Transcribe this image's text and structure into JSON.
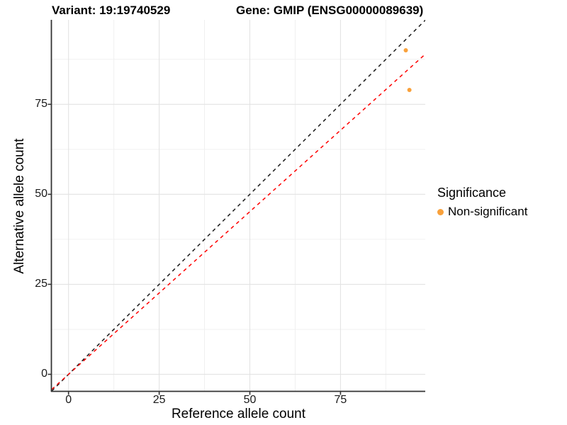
{
  "title": {
    "variant": "Variant: 19:19740529",
    "gene": "Gene: GMIP (ENSG00000089639)"
  },
  "chart_data": {
    "type": "scatter",
    "title": "Variant: 19:19740529 | Gene: GMIP (ENSG00000089639)",
    "xlabel": "Reference allele count",
    "ylabel": "Alternative allele count",
    "xlim": [
      -4.63,
      98.37
    ],
    "ylim": [
      -4.63,
      98.47
    ],
    "x_ticks": [
      0,
      25,
      50,
      75
    ],
    "y_ticks": [
      0,
      25,
      50,
      75
    ],
    "x_minor_ticks": [
      12.5,
      37.5,
      62.5,
      87.5
    ],
    "y_minor_ticks": [
      12.5,
      37.5,
      62.5,
      87.5
    ],
    "grid": true,
    "legend_position": "right",
    "point_color": "#F9A13B",
    "points": [
      {
        "x": 93,
        "y": 90,
        "series": "Non-significant"
      },
      {
        "x": 94,
        "y": 79,
        "series": "Non-significant"
      }
    ],
    "lines": [
      {
        "name": "identity-line",
        "slope": 1,
        "intercept": 0,
        "color": "#1A1A1A",
        "style": "dashed"
      },
      {
        "name": "allelic-ratio-line",
        "slope": 0.904,
        "intercept": 0,
        "color": "#FF0000",
        "style": "dashed"
      }
    ],
    "legend": {
      "title": "Significance",
      "entries": [
        {
          "label": "Non-significant",
          "color": "#F9A13B"
        }
      ]
    },
    "colors": {
      "grid_major": "#E3E3E3",
      "grid_minor": "#F0F0F0",
      "axis_line": "#333333",
      "tick_mark": "#333333"
    }
  }
}
